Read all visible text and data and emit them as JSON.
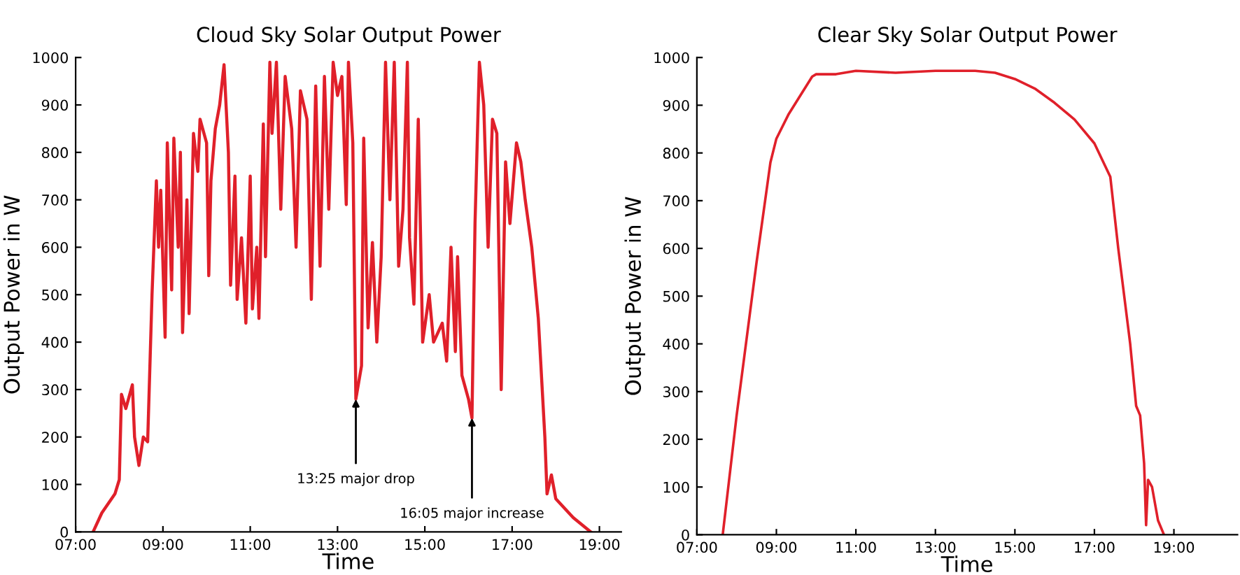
{
  "chart_data": [
    {
      "type": "line",
      "title": "Cloud Sky Solar Output Power",
      "xlabel": "Time",
      "ylabel": "Output Power in W",
      "xlim": [
        7,
        19.5
      ],
      "xticks": [
        {
          "value": 7,
          "label": "07:00"
        },
        {
          "value": 9,
          "label": "09:00"
        },
        {
          "value": 11,
          "label": "11:00"
        },
        {
          "value": 13,
          "label": "13:00"
        },
        {
          "value": 15,
          "label": "15:00"
        },
        {
          "value": 17,
          "label": "17:00"
        },
        {
          "value": 19,
          "label": "19:00"
        }
      ],
      "ylim": [
        0,
        1000
      ],
      "yticks": [
        0,
        100,
        200,
        300,
        400,
        500,
        600,
        700,
        800,
        900,
        1000
      ],
      "grid": false,
      "legend": false,
      "line_style": "solid",
      "annotations": [
        {
          "text": "13:25 major drop",
          "x": 13.42,
          "y": 280
        },
        {
          "text": "16:05 major increase",
          "x": 16.08,
          "y": 240
        }
      ],
      "series": [
        {
          "color": "#e0202a",
          "x": [
            7.4,
            7.6,
            7.9,
            8.0,
            8.05,
            8.15,
            8.3,
            8.35,
            8.45,
            8.55,
            8.65,
            8.75,
            8.85,
            8.9,
            8.95,
            9.05,
            9.1,
            9.2,
            9.25,
            9.35,
            9.4,
            9.45,
            9.55,
            9.6,
            9.7,
            9.8,
            9.85,
            10.0,
            10.05,
            10.1,
            10.2,
            10.3,
            10.4,
            10.5,
            10.55,
            10.65,
            10.7,
            10.8,
            10.9,
            11.0,
            11.05,
            11.15,
            11.2,
            11.3,
            11.35,
            11.45,
            11.5,
            11.6,
            11.7,
            11.8,
            11.95,
            12.05,
            12.15,
            12.3,
            12.4,
            12.5,
            12.6,
            12.7,
            12.8,
            12.9,
            13.0,
            13.1,
            13.2,
            13.25,
            13.35,
            13.42,
            13.55,
            13.6,
            13.7,
            13.8,
            13.9,
            14.0,
            14.1,
            14.2,
            14.3,
            14.4,
            14.5,
            14.6,
            14.65,
            14.75,
            14.85,
            14.95,
            15.1,
            15.2,
            15.4,
            15.5,
            15.6,
            15.7,
            15.75,
            15.85,
            16.0,
            16.08,
            16.15,
            16.25,
            16.35,
            16.45,
            16.55,
            16.65,
            16.75,
            16.85,
            16.95,
            17.1,
            17.2,
            17.3,
            17.45,
            17.6,
            17.75,
            17.8,
            17.9,
            18.0,
            18.4,
            18.8
          ],
          "values": [
            0,
            40,
            80,
            110,
            290,
            260,
            310,
            200,
            140,
            200,
            190,
            500,
            740,
            600,
            720,
            410,
            820,
            510,
            830,
            600,
            800,
            420,
            700,
            460,
            840,
            760,
            870,
            820,
            540,
            740,
            850,
            900,
            985,
            800,
            520,
            750,
            490,
            620,
            440,
            750,
            470,
            600,
            450,
            860,
            580,
            990,
            840,
            990,
            680,
            960,
            850,
            600,
            930,
            870,
            490,
            940,
            560,
            960,
            680,
            990,
            920,
            960,
            690,
            990,
            820,
            280,
            350,
            830,
            430,
            610,
            400,
            580,
            990,
            700,
            990,
            560,
            680,
            990,
            620,
            480,
            870,
            400,
            500,
            400,
            440,
            360,
            600,
            380,
            580,
            330,
            280,
            240,
            650,
            990,
            900,
            600,
            870,
            840,
            300,
            780,
            650,
            820,
            780,
            700,
            600,
            450,
            200,
            80,
            120,
            70,
            30,
            0
          ]
        }
      ]
    },
    {
      "type": "line",
      "title": "Clear Sky Solar Output Power",
      "xlabel": "Time",
      "ylabel": "Output Power in W",
      "xlim": [
        7,
        20.6
      ],
      "xticks": [
        {
          "value": 7,
          "label": "07:00"
        },
        {
          "value": 9,
          "label": "09:00"
        },
        {
          "value": 11,
          "label": "11:00"
        },
        {
          "value": 13,
          "label": "13:00"
        },
        {
          "value": 15,
          "label": "15:00"
        },
        {
          "value": 17,
          "label": "17:00"
        },
        {
          "value": 19,
          "label": "19:00"
        }
      ],
      "ylim": [
        0,
        1000
      ],
      "yticks": [
        0,
        100,
        200,
        300,
        400,
        500,
        600,
        700,
        800,
        900,
        1000
      ],
      "grid": false,
      "legend": false,
      "line_style": "solid",
      "series": [
        {
          "color": "#e0202a",
          "x": [
            7.65,
            8.0,
            8.5,
            8.85,
            9.0,
            9.3,
            9.6,
            9.9,
            10.0,
            10.5,
            11.0,
            12.0,
            13.0,
            14.0,
            14.5,
            15.0,
            15.5,
            16.0,
            16.5,
            17.0,
            17.4,
            17.6,
            17.9,
            18.05,
            18.15,
            18.25,
            18.3,
            18.35,
            18.45,
            18.6,
            18.75
          ],
          "values": [
            0,
            250,
            570,
            780,
            830,
            880,
            920,
            960,
            965,
            965,
            972,
            968,
            972,
            972,
            968,
            955,
            935,
            905,
            870,
            820,
            750,
            600,
            400,
            270,
            250,
            150,
            20,
            115,
            100,
            30,
            0
          ]
        }
      ]
    }
  ]
}
